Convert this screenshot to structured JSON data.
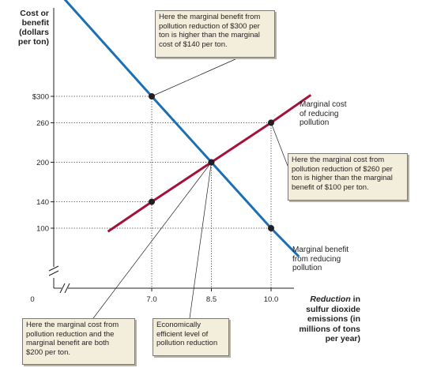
{
  "chart_data": {
    "type": "line",
    "ylabel": "Cost or\nbenefit\n(dollars\nper ton)",
    "xlabel_italic": "Reduction",
    "xlabel_rest": " in sulfur dioxide emissions (in millions of tons per year)",
    "x_ticks": [
      {
        "value": 0,
        "label": "0"
      },
      {
        "value": 7.0,
        "label": "7.0"
      },
      {
        "value": 8.5,
        "label": "8.5"
      },
      {
        "value": 10.0,
        "label": "10.0"
      }
    ],
    "y_ticks": [
      {
        "value": 100,
        "label": "100"
      },
      {
        "value": 140,
        "label": "140"
      },
      {
        "value": 200,
        "label": "200"
      },
      {
        "value": 260,
        "label": "260"
      },
      {
        "value": 300,
        "label": "$300"
      }
    ],
    "series": [
      {
        "name": "Marginal cost\nof reducing\npollution",
        "color": "#a3123a",
        "points": [
          [
            5.9,
            95
          ],
          [
            7.0,
            140
          ],
          [
            8.5,
            200
          ],
          [
            10.0,
            260
          ],
          [
            11.0,
            302
          ]
        ]
      },
      {
        "name": "Marginal benefit\nfrom reducing\npollution",
        "color": "#1c6fb5",
        "points": [
          [
            4.1,
            495
          ],
          [
            7.0,
            300
          ],
          [
            8.5,
            200
          ],
          [
            10.0,
            100
          ],
          [
            10.7,
            57
          ]
        ]
      }
    ],
    "highlight_points": [
      {
        "x": 7.0,
        "y": 300
      },
      {
        "x": 7.0,
        "y": 140
      },
      {
        "x": 8.5,
        "y": 200
      },
      {
        "x": 10.0,
        "y": 260
      },
      {
        "x": 10.0,
        "y": 100
      }
    ],
    "annotations": {
      "top": "Here the marginal benefit from\npollution reduction of $300 per\nton is higher than the marginal\ncost of $140 per ton.",
      "right": "Here the marginal cost from\npollution reduction of $260 per\nton is higher than the marginal\nbenefit of $100 per ton.",
      "bottom_left": "Here the marginal cost from\npollution reduction and the\nmarginal benefit are both\n$200 per ton.",
      "bottom_mid": "Economically\nefficient level of\npollution reduction"
    },
    "grid": "dotted guides at highlighted values",
    "legend": "labels next to curves"
  }
}
